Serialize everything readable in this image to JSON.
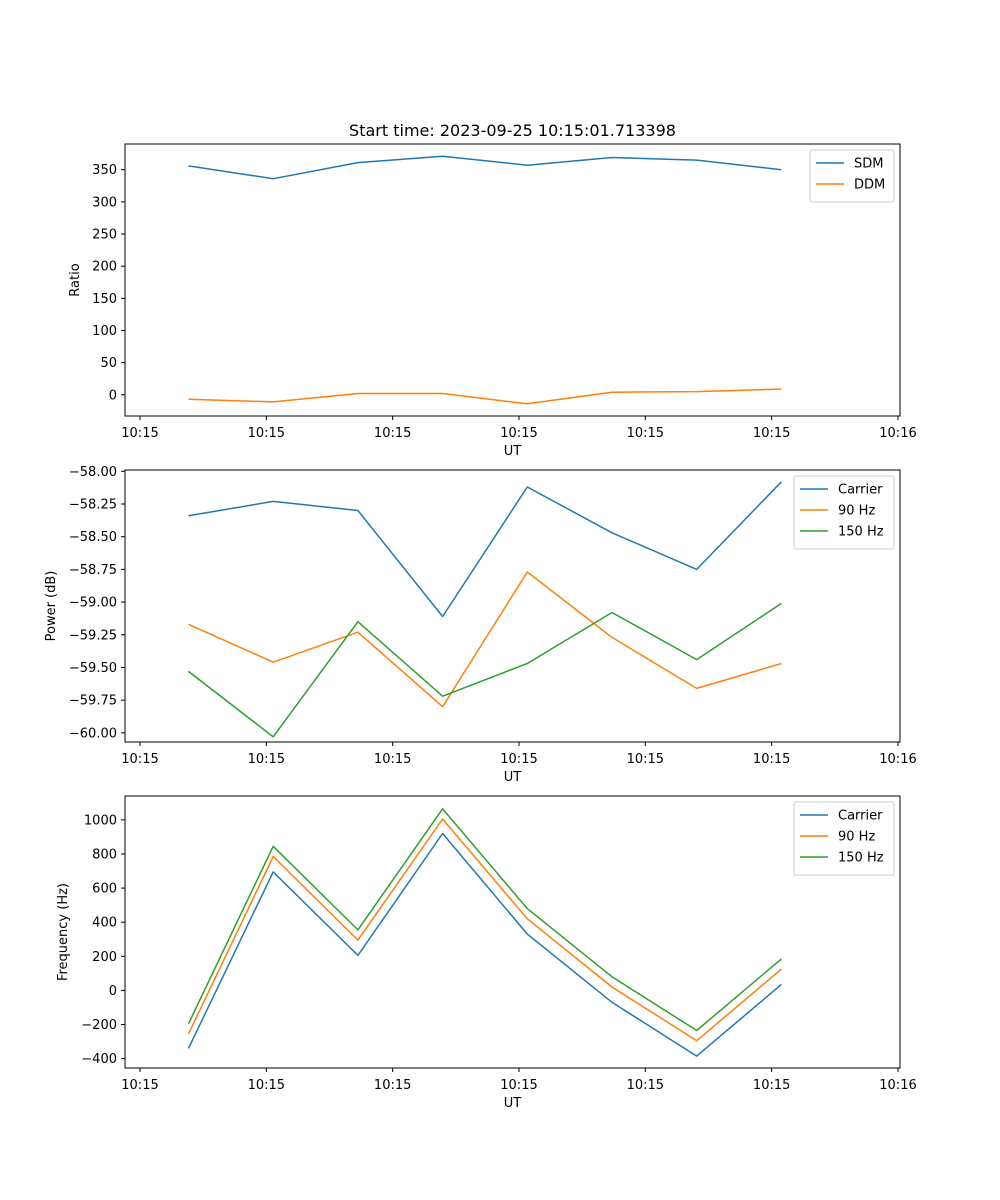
{
  "title": "Start time: 2023-09-25 10:15:01.713398",
  "colors": {
    "blue": "#1f77b4",
    "orange": "#ff7f0e",
    "green": "#2ca02c"
  },
  "chart_data": [
    {
      "type": "line",
      "title": "Start time: 2023-09-25 10:15:01.713398",
      "xlabel": "UT",
      "ylabel": "Ratio",
      "x_ticks": [
        "10:15",
        "10:15",
        "10:15",
        "10:15",
        "10:15",
        "10:15",
        "10:16"
      ],
      "x": [
        0,
        1,
        2,
        3,
        4,
        5,
        6,
        7
      ],
      "xlim": [
        -0.75,
        8.4
      ],
      "ylim": [
        -33,
        390
      ],
      "y_ticks": [
        0,
        50,
        100,
        150,
        200,
        250,
        300,
        350
      ],
      "y_tick_labels": [
        "0",
        "50",
        "100",
        "150",
        "200",
        "250",
        "300",
        "350"
      ],
      "legend": "top-right",
      "series": [
        {
          "name": "SDM",
          "color": "#1f77b4",
          "values": [
            356,
            336,
            361,
            371,
            357,
            369,
            365,
            350
          ]
        },
        {
          "name": "DDM",
          "color": "#ff7f0e",
          "values": [
            -7,
            -11,
            2,
            2,
            -14,
            4,
            5,
            9
          ]
        }
      ]
    },
    {
      "type": "line",
      "title": "",
      "xlabel": "UT",
      "ylabel": "Power (dB)",
      "x_ticks": [
        "10:15",
        "10:15",
        "10:15",
        "10:15",
        "10:15",
        "10:15",
        "10:16"
      ],
      "x": [
        0,
        1,
        2,
        3,
        4,
        5,
        6,
        7
      ],
      "xlim": [
        -0.75,
        8.4
      ],
      "ylim": [
        -60.07,
        -57.99
      ],
      "y_ticks": [
        -58.0,
        -58.25,
        -58.5,
        -58.75,
        -59.0,
        -59.25,
        -59.5,
        -59.75,
        -60.0
      ],
      "y_tick_labels": [
        "−58.00",
        "−58.25",
        "−58.50",
        "−58.75",
        "−59.00",
        "−59.25",
        "−59.50",
        "−59.75",
        "−60.00"
      ],
      "legend": "top-right",
      "series": [
        {
          "name": "Carrier",
          "color": "#1f77b4",
          "values": [
            -58.34,
            -58.23,
            -58.3,
            -59.11,
            -58.12,
            -58.47,
            -58.75,
            -58.08
          ]
        },
        {
          "name": "90 Hz",
          "color": "#ff7f0e",
          "values": [
            -59.17,
            -59.46,
            -59.23,
            -59.8,
            -58.77,
            -59.27,
            -59.66,
            -59.47
          ]
        },
        {
          "name": "150 Hz",
          "color": "#2ca02c",
          "values": [
            -59.53,
            -60.03,
            -59.15,
            -59.72,
            -59.47,
            -59.08,
            -59.44,
            -59.01
          ]
        }
      ]
    },
    {
      "type": "line",
      "title": "",
      "xlabel": "UT",
      "ylabel": "Frequency (Hz)",
      "x_ticks": [
        "10:15",
        "10:15",
        "10:15",
        "10:15",
        "10:15",
        "10:15",
        "10:16"
      ],
      "x": [
        0,
        1,
        2,
        3,
        4,
        5,
        6,
        7
      ],
      "xlim": [
        -0.75,
        8.4
      ],
      "ylim": [
        -455,
        1140
      ],
      "y_ticks": [
        -400,
        -200,
        0,
        200,
        400,
        600,
        800,
        1000
      ],
      "y_tick_labels": [
        "−400",
        "−200",
        "0",
        "200",
        "400",
        "600",
        "800",
        "1000"
      ],
      "legend": "top-right",
      "series": [
        {
          "name": "Carrier",
          "color": "#1f77b4",
          "values": [
            -340,
            695,
            205,
            920,
            330,
            -70,
            -385,
            35
          ]
        },
        {
          "name": "90 Hz",
          "color": "#ff7f0e",
          "values": [
            -255,
            785,
            295,
            1005,
            420,
            20,
            -295,
            125
          ]
        },
        {
          "name": "150 Hz",
          "color": "#2ca02c",
          "values": [
            -195,
            845,
            355,
            1065,
            480,
            80,
            -235,
            185
          ]
        }
      ]
    }
  ]
}
